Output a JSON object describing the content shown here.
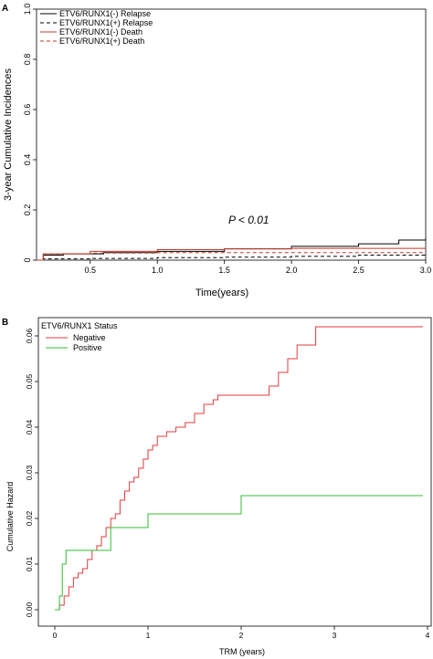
{
  "chart_data": [
    {
      "panel": "A",
      "type": "line",
      "xlabel": "Time(years)",
      "ylabel": "3-year Cumulative Incidences",
      "xlim": [
        0.1,
        3.0
      ],
      "ylim": [
        0,
        1.0
      ],
      "xticks": [
        "0.5",
        "1.0",
        "1.5",
        "2.0",
        "2.5",
        "3.0"
      ],
      "yticks": [
        "0",
        "0.2",
        "0.4",
        "0.6",
        "0.8",
        "1.0"
      ],
      "annotation": "P < 0.01",
      "legend_position": "top-left",
      "series": [
        {
          "name": "ETV6/RUNX1(-) Relapse",
          "color": "#000000",
          "dash": "solid",
          "x": [
            0.1,
            0.15,
            0.3,
            0.6,
            1.0,
            1.5,
            2.0,
            2.5,
            2.8,
            3.0
          ],
          "y": [
            0.0,
            0.02,
            0.025,
            0.03,
            0.035,
            0.045,
            0.055,
            0.065,
            0.08,
            0.09
          ]
        },
        {
          "name": "ETV6/RUNX1(+) Relapse",
          "color": "#000000",
          "dash": "dashed",
          "x": [
            0.1,
            0.15,
            0.5,
            1.0,
            1.5,
            2.0,
            2.5,
            3.0
          ],
          "y": [
            0.0,
            0.005,
            0.007,
            0.01,
            0.012,
            0.015,
            0.02,
            0.025
          ]
        },
        {
          "name": "ETV6/RUNX1(-) Death",
          "color": "#c0392b",
          "dash": "solid",
          "x": [
            0.1,
            0.15,
            0.5,
            1.0,
            1.5,
            2.0,
            2.5,
            3.0
          ],
          "y": [
            0.0,
            0.025,
            0.035,
            0.042,
            0.045,
            0.047,
            0.047,
            0.047
          ]
        },
        {
          "name": "ETV6/RUNX1(+) Death",
          "color": "#c0392b",
          "dash": "dashed",
          "x": [
            0.1,
            0.15,
            0.5,
            1.0,
            1.5,
            2.0,
            2.5,
            3.0
          ],
          "y": [
            0.0,
            0.025,
            0.028,
            0.03,
            0.03,
            0.03,
            0.03,
            0.03
          ]
        }
      ]
    },
    {
      "panel": "B",
      "type": "line",
      "step": true,
      "xlabel": "TRM  (years)",
      "ylabel": "Cumulative Hazard",
      "xlim": [
        0,
        4
      ],
      "ylim": [
        0,
        0.06
      ],
      "xticks": [
        "0",
        "1",
        "2",
        "3",
        "4"
      ],
      "yticks": [
        "0.00",
        "0.01",
        "0.02",
        "0.03",
        "0.04",
        "0.05",
        "0.06"
      ],
      "legend_title": "ETV6/RUNX1 Status",
      "legend_position": "top-left",
      "series": [
        {
          "name": "Negative",
          "color": "#e03b3b",
          "x": [
            0,
            0.05,
            0.1,
            0.15,
            0.2,
            0.25,
            0.3,
            0.35,
            0.4,
            0.45,
            0.5,
            0.55,
            0.6,
            0.65,
            0.7,
            0.75,
            0.8,
            0.85,
            0.9,
            0.95,
            1.0,
            1.05,
            1.1,
            1.2,
            1.3,
            1.4,
            1.5,
            1.6,
            1.7,
            1.75,
            1.9,
            2.2,
            2.3,
            2.4,
            2.5,
            2.6,
            2.8,
            3.0,
            3.5,
            3.95
          ],
          "y": [
            0,
            0.001,
            0.003,
            0.005,
            0.007,
            0.008,
            0.009,
            0.011,
            0.013,
            0.014,
            0.016,
            0.018,
            0.02,
            0.021,
            0.024,
            0.026,
            0.028,
            0.029,
            0.031,
            0.033,
            0.035,
            0.036,
            0.038,
            0.039,
            0.04,
            0.041,
            0.043,
            0.045,
            0.046,
            0.047,
            0.047,
            0.047,
            0.049,
            0.052,
            0.055,
            0.058,
            0.062,
            0.062,
            0.062,
            0.062
          ]
        },
        {
          "name": "Positive",
          "color": "#33bb33",
          "x": [
            0,
            0.05,
            0.08,
            0.12,
            0.55,
            0.6,
            1.0,
            2.0,
            3.95
          ],
          "y": [
            0,
            0.003,
            0.01,
            0.013,
            0.013,
            0.018,
            0.021,
            0.025,
            0.025
          ]
        }
      ]
    }
  ]
}
